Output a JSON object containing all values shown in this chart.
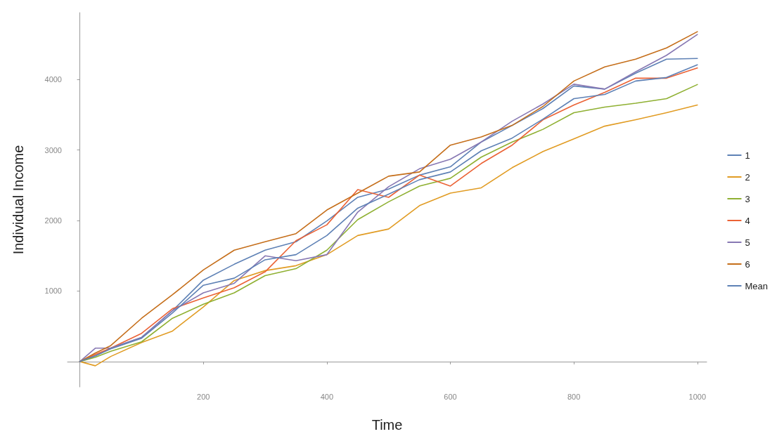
{
  "chart_data": {
    "type": "line",
    "xlabel": "Time",
    "ylabel": "Individual Income",
    "x": [
      0,
      25,
      50,
      100,
      150,
      200,
      250,
      300,
      350,
      400,
      450,
      500,
      550,
      600,
      650,
      700,
      750,
      800,
      850,
      900,
      950,
      1000
    ],
    "series": [
      {
        "name": "1",
        "color": "#5e81b5",
        "values": [
          0,
          80,
          190,
          343,
          722,
          1155,
          1380,
          1580,
          1700,
          1995,
          2330,
          2447,
          2645,
          2763,
          3115,
          3350,
          3590,
          3910,
          3865,
          4090,
          4290,
          4300
        ]
      },
      {
        "name": "2",
        "color": "#e19c24",
        "values": [
          0,
          -60,
          72,
          270,
          433,
          775,
          1150,
          1290,
          1360,
          1517,
          1788,
          1880,
          2212,
          2390,
          2465,
          2750,
          2980,
          3160,
          3340,
          3430,
          3530,
          3640
        ]
      },
      {
        "name": "3",
        "color": "#8fb032",
        "values": [
          0,
          60,
          145,
          280,
          614,
          813,
          975,
          1219,
          1318,
          1580,
          2013,
          2266,
          2490,
          2600,
          2900,
          3115,
          3295,
          3530,
          3610,
          3665,
          3730,
          3930
        ]
      },
      {
        "name": "4",
        "color": "#eb6235",
        "values": [
          0,
          100,
          190,
          400,
          750,
          903,
          1047,
          1273,
          1715,
          1940,
          2440,
          2330,
          2645,
          2490,
          2810,
          3070,
          3430,
          3640,
          3820,
          4020,
          4020,
          4165
        ]
      },
      {
        "name": "5",
        "color": "#8778b3",
        "values": [
          0,
          190,
          190,
          343,
          722,
          975,
          1110,
          1500,
          1430,
          1517,
          2120,
          2480,
          2735,
          2870,
          3115,
          3410,
          3655,
          3935,
          3865,
          4110,
          4345,
          4640
        ]
      },
      {
        "name": "6",
        "color": "#c56e1a",
        "values": [
          0,
          120,
          226,
          614,
          948,
          1300,
          1580,
          1700,
          1815,
          2150,
          2390,
          2630,
          2690,
          3070,
          3187,
          3350,
          3620,
          3980,
          4180,
          4290,
          4450,
          4680
        ]
      },
      {
        "name": "Mean",
        "color": "#5e81b5",
        "values": [
          0,
          80,
          180,
          330,
          690,
          1083,
          1183,
          1444,
          1517,
          1788,
          2176,
          2375,
          2580,
          2690,
          2990,
          3170,
          3440,
          3730,
          3790,
          3980,
          4030,
          4210
        ]
      }
    ],
    "xlim": [
      -20,
      1015
    ],
    "ylim": [
      -360,
      4950
    ],
    "xticks": [
      200,
      400,
      600,
      800,
      1000
    ],
    "yticks": [
      1000,
      2000,
      3000,
      4000
    ],
    "grid": false,
    "legend": "right",
    "marker": "none",
    "line_style": "solid"
  }
}
